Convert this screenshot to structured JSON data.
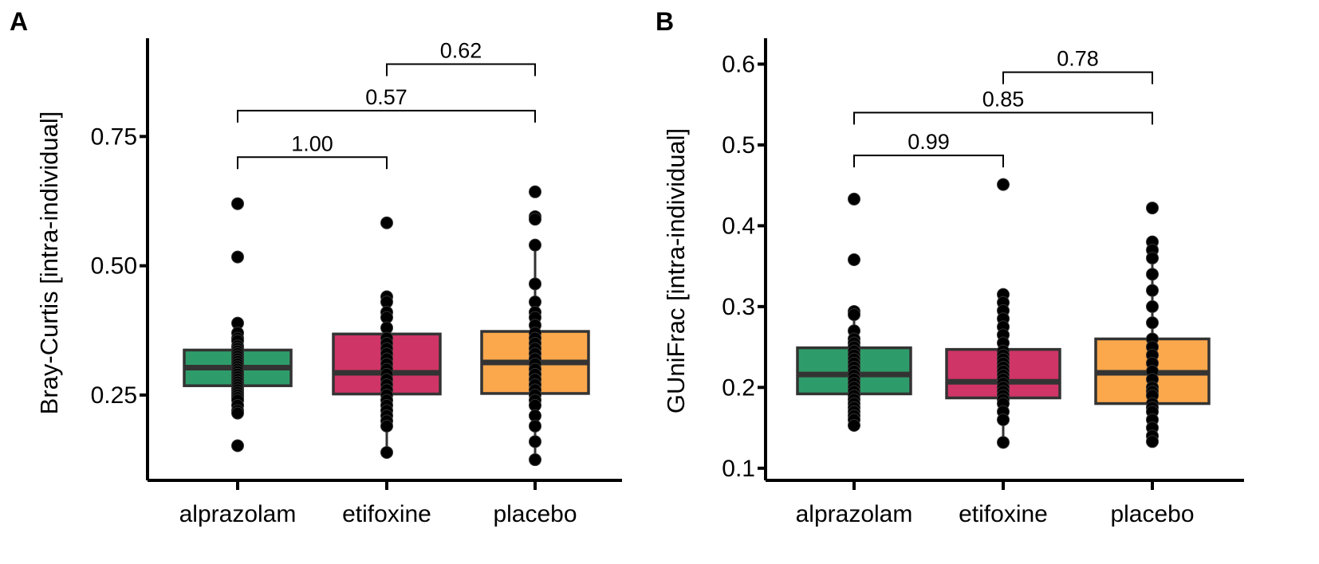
{
  "chart_data": [
    {
      "panel": "A",
      "type": "box",
      "ylabel": "Bray-Curtis [intra-individual]",
      "xlabel": "",
      "categories": [
        "alprazolam",
        "etifoxine",
        "placebo"
      ],
      "ylim": [
        0.085,
        0.94
      ],
      "yticks": [
        0.25,
        0.5,
        0.75
      ],
      "ytick_labels": [
        "0.25",
        "0.50",
        "0.75"
      ],
      "colors": [
        "#2e9c6a",
        "#cf3566",
        "#fba74c"
      ],
      "boxes": [
        {
          "q1": 0.268,
          "median": 0.303,
          "q3": 0.337,
          "whisker_low": 0.215,
          "whisker_high": 0.368
        },
        {
          "q1": 0.252,
          "median": 0.293,
          "q3": 0.368,
          "whisker_low": 0.139,
          "whisker_high": 0.44
        },
        {
          "q1": 0.253,
          "median": 0.313,
          "q3": 0.373,
          "whisker_low": 0.125,
          "whisker_high": 0.54
        }
      ],
      "points": [
        [
          0.62,
          0.517,
          0.389,
          0.37,
          0.36,
          0.355,
          0.345,
          0.34,
          0.335,
          0.33,
          0.325,
          0.32,
          0.315,
          0.31,
          0.305,
          0.3,
          0.295,
          0.29,
          0.285,
          0.28,
          0.275,
          0.27,
          0.265,
          0.26,
          0.255,
          0.25,
          0.245,
          0.24,
          0.23,
          0.22,
          0.215,
          0.152
        ],
        [
          0.583,
          0.44,
          0.43,
          0.41,
          0.4,
          0.38,
          0.36,
          0.35,
          0.34,
          0.33,
          0.32,
          0.31,
          0.3,
          0.29,
          0.28,
          0.27,
          0.26,
          0.25,
          0.24,
          0.23,
          0.22,
          0.21,
          0.2,
          0.19,
          0.139
        ],
        [
          0.643,
          0.595,
          0.59,
          0.54,
          0.465,
          0.43,
          0.41,
          0.4,
          0.385,
          0.37,
          0.36,
          0.35,
          0.34,
          0.33,
          0.32,
          0.31,
          0.3,
          0.29,
          0.28,
          0.27,
          0.26,
          0.25,
          0.24,
          0.23,
          0.21,
          0.19,
          0.16,
          0.125
        ]
      ],
      "comparisons": [
        {
          "from": 1,
          "to": 2,
          "label": "0.62",
          "y": 0.89
        },
        {
          "from": 0,
          "to": 2,
          "label": "0.57",
          "y": 0.8
        },
        {
          "from": 0,
          "to": 1,
          "label": "1.00",
          "y": 0.71
        }
      ]
    },
    {
      "panel": "B",
      "type": "box",
      "ylabel": "GUniFrac [intra-individual]",
      "xlabel": "",
      "categories": [
        "alprazolam",
        "etifoxine",
        "placebo"
      ],
      "ylim": [
        0.085,
        0.632
      ],
      "yticks": [
        0.1,
        0.2,
        0.3,
        0.4,
        0.5,
        0.6
      ],
      "ytick_labels": [
        "0.1",
        "0.2",
        "0.3",
        "0.4",
        "0.5",
        "0.6"
      ],
      "colors": [
        "#2e9c6a",
        "#cf3566",
        "#fba74c"
      ],
      "boxes": [
        {
          "q1": 0.192,
          "median": 0.216,
          "q3": 0.249,
          "whisker_low": 0.153,
          "whisker_high": 0.294
        },
        {
          "q1": 0.187,
          "median": 0.207,
          "q3": 0.247,
          "whisker_low": 0.132,
          "whisker_high": 0.315
        },
        {
          "q1": 0.18,
          "median": 0.218,
          "q3": 0.26,
          "whisker_low": 0.133,
          "whisker_high": 0.378
        }
      ],
      "points": [
        [
          0.433,
          0.358,
          0.294,
          0.29,
          0.27,
          0.26,
          0.255,
          0.25,
          0.245,
          0.24,
          0.235,
          0.23,
          0.225,
          0.22,
          0.215,
          0.21,
          0.205,
          0.2,
          0.195,
          0.19,
          0.185,
          0.18,
          0.175,
          0.17,
          0.165,
          0.16,
          0.153
        ],
        [
          0.451,
          0.315,
          0.305,
          0.295,
          0.285,
          0.275,
          0.265,
          0.255,
          0.245,
          0.24,
          0.235,
          0.23,
          0.225,
          0.22,
          0.215,
          0.21,
          0.205,
          0.2,
          0.195,
          0.19,
          0.185,
          0.18,
          0.17,
          0.16,
          0.132
        ],
        [
          0.422,
          0.38,
          0.37,
          0.36,
          0.34,
          0.32,
          0.3,
          0.28,
          0.26,
          0.25,
          0.24,
          0.23,
          0.22,
          0.21,
          0.2,
          0.195,
          0.19,
          0.18,
          0.175,
          0.17,
          0.16,
          0.15,
          0.14,
          0.133
        ]
      ],
      "comparisons": [
        {
          "from": 1,
          "to": 2,
          "label": "0.78",
          "y": 0.59
        },
        {
          "from": 0,
          "to": 2,
          "label": "0.85",
          "y": 0.54
        },
        {
          "from": 0,
          "to": 1,
          "label": "0.99",
          "y": 0.487
        }
      ]
    }
  ]
}
